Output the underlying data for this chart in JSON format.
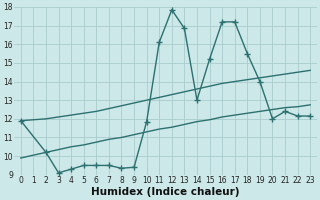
{
  "bg_color": "#cce8e8",
  "line_color": "#2d7070",
  "grid_color": "#aacccc",
  "xlabel": "Humidex (Indice chaleur)",
  "xlim": [
    -0.5,
    23.5
  ],
  "ylim": [
    9,
    18
  ],
  "xticks": [
    0,
    1,
    2,
    3,
    4,
    5,
    6,
    7,
    8,
    9,
    10,
    11,
    12,
    13,
    14,
    15,
    16,
    17,
    18,
    19,
    20,
    21,
    22,
    23
  ],
  "yticks": [
    9,
    10,
    11,
    12,
    13,
    14,
    15,
    16,
    17,
    18
  ],
  "line1_x": [
    0,
    2,
    3,
    4,
    5,
    6,
    7,
    8,
    9,
    10,
    11,
    12,
    13,
    14,
    15,
    16,
    17,
    18,
    19,
    20,
    21,
    22,
    23
  ],
  "line1_y": [
    11.9,
    12.0,
    12.1,
    12.2,
    12.3,
    12.4,
    12.55,
    12.7,
    12.85,
    13.0,
    13.15,
    13.3,
    13.45,
    13.6,
    13.75,
    13.9,
    14.0,
    14.1,
    14.2,
    14.3,
    14.4,
    14.5,
    14.6
  ],
  "line2_x": [
    0,
    2,
    3,
    4,
    5,
    6,
    7,
    8,
    9,
    10,
    11,
    12,
    13,
    14,
    15,
    16,
    17,
    18,
    19,
    20,
    21,
    22,
    23
  ],
  "line2_y": [
    9.9,
    10.2,
    10.35,
    10.5,
    10.6,
    10.75,
    10.9,
    11.0,
    11.15,
    11.3,
    11.45,
    11.55,
    11.7,
    11.85,
    11.95,
    12.1,
    12.2,
    12.3,
    12.4,
    12.5,
    12.6,
    12.65,
    12.75
  ],
  "line3_x": [
    0,
    2,
    3,
    4,
    5,
    6,
    7,
    8,
    9,
    10,
    11,
    12,
    13,
    14,
    15,
    16,
    17,
    18,
    19,
    20,
    21,
    22,
    23
  ],
  "line3_y": [
    11.9,
    10.2,
    9.1,
    9.3,
    9.5,
    9.5,
    9.5,
    9.35,
    9.4,
    11.85,
    16.1,
    17.85,
    16.85,
    13.0,
    15.2,
    17.2,
    17.2,
    15.5,
    14.0,
    12.0,
    12.4,
    12.15,
    12.15
  ],
  "marker": "+",
  "markersize": 4.5,
  "linewidth": 1.0,
  "xlabel_fontsize": 7.5,
  "tick_labelsize": 5.5
}
